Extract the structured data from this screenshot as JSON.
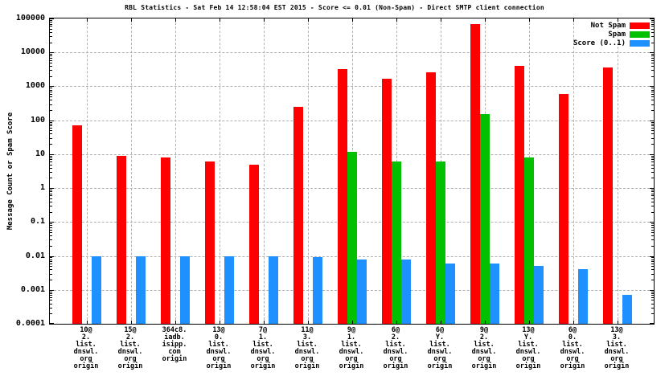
{
  "chart_data": {
    "type": "bar",
    "title": "RBL Statistics - Sat Feb 14 12:58:04 EST 2015 - Score <= 0.01 (Non-Spam) - Direct SMTP client connection",
    "ylabel": "Message Count or Spam Score",
    "xlabel": "",
    "y_scale": "log",
    "ylim": [
      0.0001,
      100000
    ],
    "ytick_labels": [
      "100000",
      "10000",
      "1000",
      "100",
      "10",
      "1",
      "0.1",
      "0.01",
      "0.001",
      "0.0001"
    ],
    "grid": "dashed gray horizontal lines at each decade and vertical lines at each category",
    "legend_position": "top-right-inside",
    "categories": [
      [
        "10@",
        "2.",
        "list.",
        "dnswl.",
        "org",
        "origin"
      ],
      [
        "15@",
        "2.",
        "list.",
        "dnswl.",
        "org",
        "origin"
      ],
      [
        "364c8.",
        "iadb.",
        "isipp.",
        "com",
        "origin"
      ],
      [
        "13@",
        "0.",
        "list.",
        "dnswl.",
        "org",
        "origin"
      ],
      [
        "7@",
        "1.",
        "list.",
        "dnswl.",
        "org",
        "origin"
      ],
      [
        "11@",
        "3.",
        "list.",
        "dnswl.",
        "org",
        "origin"
      ],
      [
        "9@",
        "1.",
        "list.",
        "dnswl.",
        "org",
        "origin"
      ],
      [
        "6@",
        "2.",
        "list.",
        "dnswl.",
        "org",
        "origin"
      ],
      [
        "6@",
        "Y.",
        "list.",
        "dnswl.",
        "org",
        "origin"
      ],
      [
        "9@",
        "2.",
        "list.",
        "dnswl.",
        "org",
        "origin"
      ],
      [
        "13@",
        "Y.",
        "list.",
        "dnswl.",
        "org",
        "origin"
      ],
      [
        "6@",
        "0.",
        "list.",
        "dnswl.",
        "org",
        "origin"
      ],
      [
        "13@",
        "3.",
        "list.",
        "dnswl.",
        "org",
        "origin"
      ]
    ],
    "series": [
      {
        "name": "Not Spam",
        "color": "#ff0000",
        "values": [
          70,
          9,
          8,
          6,
          5,
          250,
          3300,
          1700,
          2600,
          70000,
          4100,
          600,
          3500
        ]
      },
      {
        "name": "Spam",
        "color": "#00c000",
        "values": [
          null,
          null,
          null,
          null,
          null,
          null,
          12,
          6,
          6,
          150,
          8,
          null,
          null
        ]
      },
      {
        "name": "Score (0..1)",
        "color": "#1e90ff",
        "values": [
          0.01,
          0.01,
          0.01,
          0.01,
          0.01,
          0.009,
          0.008,
          0.008,
          0.006,
          0.006,
          0.005,
          0.004,
          0.0007
        ]
      }
    ]
  }
}
